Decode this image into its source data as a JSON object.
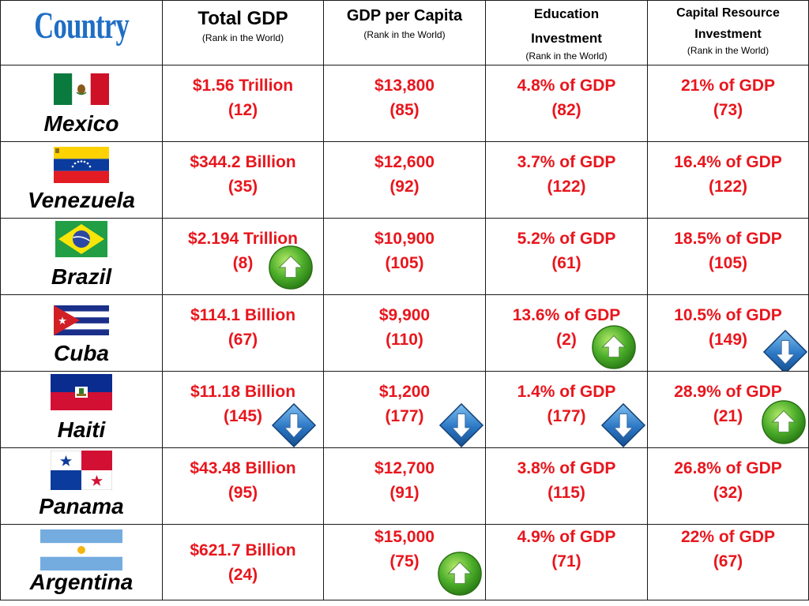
{
  "header": {
    "country": "Country",
    "total_gdp": "Total GDP",
    "gdp_per_capita": "GDP per Capita",
    "education_line1": "Education",
    "education_line2": "Investment",
    "capital_line1": "Capital Resource",
    "capital_line2": "Investment",
    "rank_note": "(Rank in the World)"
  },
  "rows": [
    {
      "country": "Mexico",
      "gdp": "$1.56 Trillion",
      "gdp_rank": "(12)",
      "per_capita": "$13,800",
      "per_capita_rank": "(85)",
      "education": "4.8% of GDP",
      "education_rank": "(82)",
      "capital": "21% of GDP",
      "capital_rank": "(73)"
    },
    {
      "country": "Venezuela",
      "gdp": "$344.2 Billion",
      "gdp_rank": "(35)",
      "per_capita": "$12,600",
      "per_capita_rank": "(92)",
      "education": "3.7% of GDP",
      "education_rank": "(122)",
      "capital": "16.4% of GDP",
      "capital_rank": "(122)"
    },
    {
      "country": "Brazil",
      "gdp": "$2.194 Trillion",
      "gdp_rank": "(8)",
      "per_capita": "$10,900",
      "per_capita_rank": "(105)",
      "education": "5.2% of GDP",
      "education_rank": "(61)",
      "capital": "18.5% of GDP",
      "capital_rank": "(105)"
    },
    {
      "country": "Cuba",
      "gdp": "$114.1 Billion",
      "gdp_rank": "(67)",
      "per_capita": "$9,900",
      "per_capita_rank": "(110)",
      "education": "13.6% of GDP",
      "education_rank": "(2)",
      "capital": "10.5% of GDP",
      "capital_rank": "(149)"
    },
    {
      "country": "Haiti",
      "gdp": "$11.18 Billion",
      "gdp_rank": "(145)",
      "per_capita": "$1,200",
      "per_capita_rank": "(177)",
      "education": "1.4% of GDP",
      "education_rank": "(177)",
      "capital": "28.9% of GDP",
      "capital_rank": "(21)"
    },
    {
      "country": "Panama",
      "gdp": "$43.48 Billion",
      "gdp_rank": "(95)",
      "per_capita": "$12,700",
      "per_capita_rank": "(91)",
      "education": "3.8% of GDP",
      "education_rank": "(115)",
      "capital": "26.8% of GDP",
      "capital_rank": "(32)"
    },
    {
      "country": "Argentina",
      "gdp": "$621.7 Billion",
      "gdp_rank": "(24)",
      "per_capita": "$15,000",
      "per_capita_rank": "(75)",
      "education": "4.9% of GDP",
      "education_rank": "(71)",
      "capital": "22% of GDP",
      "capital_rank": "(67)"
    }
  ],
  "indicators": {
    "up_icon": "green-up-arrow-icon",
    "down_icon": "blue-down-arrow-icon",
    "up_color": "#3fa82a",
    "down_color": "#1d5fa8",
    "value_color": "#e8161d",
    "title_color": "#1f6ec4"
  }
}
